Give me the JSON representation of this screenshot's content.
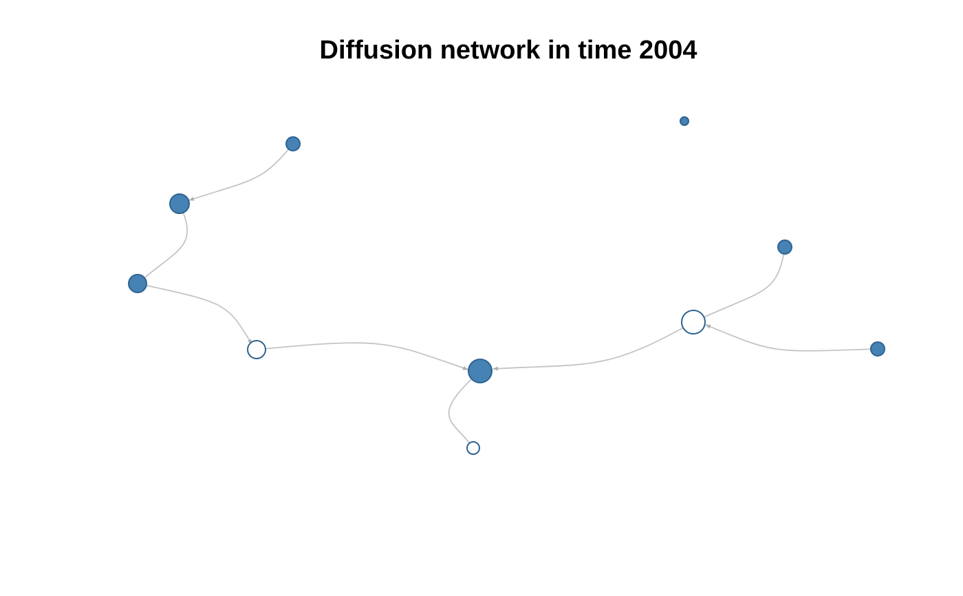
{
  "title": "Diffusion network in time 2004",
  "colors": {
    "adopter_fill": "#4682b4",
    "node_border": "#2d6291",
    "non_adopter_fill": "#ffffff",
    "edge": "#c4c4c4",
    "background": "#ffffff"
  },
  "graph": {
    "nodes": [
      {
        "id": "n1",
        "adopted": true
      },
      {
        "id": "n2",
        "adopted": true
      },
      {
        "id": "n3",
        "adopted": true
      },
      {
        "id": "n4",
        "adopted": false
      },
      {
        "id": "n5",
        "adopted": true
      },
      {
        "id": "n6",
        "adopted": false
      },
      {
        "id": "n7",
        "adopted": false
      },
      {
        "id": "n8",
        "adopted": true
      },
      {
        "id": "n9",
        "adopted": true
      },
      {
        "id": "n10",
        "adopted": true
      }
    ],
    "edges": [
      {
        "from": "n1",
        "to": "n2"
      },
      {
        "from": "n2",
        "to": "n3"
      },
      {
        "from": "n3",
        "to": "n4"
      },
      {
        "from": "n4",
        "to": "n5"
      },
      {
        "from": "n5",
        "to": "n6"
      },
      {
        "from": "n7",
        "to": "n5"
      },
      {
        "from": "n8",
        "to": "n7"
      },
      {
        "from": "n9",
        "to": "n7"
      }
    ]
  }
}
